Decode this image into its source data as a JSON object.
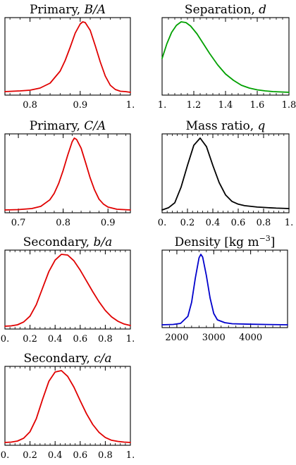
{
  "chart_data": [
    {
      "type": "line",
      "title": "Primary, ",
      "title_var": "B/A",
      "xlim": [
        0.75,
        1.0
      ],
      "xticks": [
        0.8,
        0.9,
        1.0
      ],
      "xtick_labels": [
        "0.8",
        "0.9",
        "1."
      ],
      "series": [
        {
          "color": "#e00000",
          "x": [
            0.75,
            0.78,
            0.8,
            0.82,
            0.84,
            0.86,
            0.87,
            0.88,
            0.89,
            0.9,
            0.905,
            0.91,
            0.92,
            0.93,
            0.94,
            0.95,
            0.96,
            0.97,
            0.98,
            0.99,
            1.0
          ],
          "y": [
            0.01,
            0.02,
            0.03,
            0.06,
            0.13,
            0.3,
            0.45,
            0.64,
            0.84,
            0.97,
            1.0,
            0.99,
            0.88,
            0.66,
            0.43,
            0.23,
            0.1,
            0.04,
            0.015,
            0.01,
            0.0
          ]
        }
      ]
    },
    {
      "type": "line",
      "title": "Separation, ",
      "title_var": "d",
      "xlim": [
        1.0,
        1.8
      ],
      "xticks": [
        1.0,
        1.2,
        1.4,
        1.6,
        1.8
      ],
      "xtick_labels": [
        "1.",
        "1.2",
        "1.4",
        "1.6",
        "1.8"
      ],
      "series": [
        {
          "color": "#00a000",
          "x": [
            1.0,
            1.03,
            1.06,
            1.09,
            1.12,
            1.15,
            1.18,
            1.22,
            1.26,
            1.3,
            1.35,
            1.4,
            1.45,
            1.5,
            1.55,
            1.6,
            1.65,
            1.7,
            1.75,
            1.8
          ],
          "y": [
            0.48,
            0.69,
            0.85,
            0.95,
            1.0,
            0.99,
            0.94,
            0.83,
            0.69,
            0.55,
            0.39,
            0.26,
            0.17,
            0.1,
            0.06,
            0.035,
            0.02,
            0.01,
            0.005,
            0.0
          ]
        }
      ]
    },
    {
      "type": "line",
      "title": "Primary, ",
      "title_var": "C/A",
      "xlim": [
        0.67,
        0.95
      ],
      "xticks": [
        0.7,
        0.8,
        0.9
      ],
      "xtick_labels": [
        "0.7",
        "0.8",
        "0.9"
      ],
      "series": [
        {
          "color": "#e00000",
          "x": [
            0.67,
            0.7,
            0.73,
            0.75,
            0.77,
            0.78,
            0.79,
            0.8,
            0.81,
            0.82,
            0.825,
            0.83,
            0.84,
            0.85,
            0.86,
            0.87,
            0.88,
            0.89,
            0.9,
            0.92,
            0.95
          ],
          "y": [
            0.0,
            0.005,
            0.02,
            0.05,
            0.14,
            0.23,
            0.37,
            0.55,
            0.76,
            0.95,
            1.0,
            0.98,
            0.86,
            0.66,
            0.45,
            0.28,
            0.15,
            0.08,
            0.04,
            0.01,
            0.0
          ]
        }
      ]
    },
    {
      "type": "line",
      "title": "Mass ratio, ",
      "title_var": "q",
      "xlim": [
        0.0,
        1.0
      ],
      "xticks": [
        0.0,
        0.2,
        0.4,
        0.6,
        0.8,
        1.0
      ],
      "xtick_labels": [
        "0.",
        "0.2",
        "0.4",
        "0.6",
        "0.8",
        "1."
      ],
      "series": [
        {
          "color": "#000000",
          "x": [
            0.0,
            0.05,
            0.1,
            0.15,
            0.2,
            0.25,
            0.3,
            0.35,
            0.4,
            0.45,
            0.5,
            0.55,
            0.6,
            0.65,
            0.7,
            0.75,
            0.8,
            0.9,
            1.0
          ],
          "y": [
            0.0,
            0.03,
            0.1,
            0.32,
            0.62,
            0.9,
            1.0,
            0.88,
            0.62,
            0.38,
            0.21,
            0.12,
            0.08,
            0.06,
            0.05,
            0.04,
            0.035,
            0.025,
            0.02
          ]
        }
      ]
    },
    {
      "type": "line",
      "title": "Secondary, ",
      "title_var": "b/a",
      "xlim": [
        0.0,
        1.0
      ],
      "xticks": [
        0.0,
        0.2,
        0.4,
        0.6,
        0.8,
        1.0
      ],
      "xtick_labels": [
        "0.",
        "0.2",
        "0.4",
        "0.6",
        "0.8",
        "1."
      ],
      "series": [
        {
          "color": "#e00000",
          "x": [
            0.0,
            0.05,
            0.1,
            0.15,
            0.2,
            0.25,
            0.3,
            0.35,
            0.4,
            0.45,
            0.5,
            0.55,
            0.6,
            0.65,
            0.7,
            0.75,
            0.8,
            0.85,
            0.9,
            0.95,
            1.0
          ],
          "y": [
            0.0,
            0.005,
            0.02,
            0.06,
            0.14,
            0.3,
            0.53,
            0.76,
            0.92,
            1.0,
            0.99,
            0.91,
            0.78,
            0.63,
            0.48,
            0.34,
            0.22,
            0.13,
            0.07,
            0.03,
            0.01
          ]
        }
      ]
    },
    {
      "type": "line",
      "title": "Density [kg m",
      "title_sup": "−3",
      "title_end": "]",
      "xlim": [
        1600,
        5000
      ],
      "xticks": [
        2000,
        3000,
        4000
      ],
      "xtick_labels": [
        "2000",
        "3000",
        "4000"
      ],
      "series": [
        {
          "color": "#0000cc",
          "x": [
            1600,
            1900,
            2100,
            2300,
            2400,
            2500,
            2600,
            2650,
            2700,
            2800,
            2900,
            3000,
            3100,
            3300,
            3500,
            4000,
            4500,
            5000
          ],
          "y": [
            0.0,
            0.005,
            0.02,
            0.12,
            0.32,
            0.66,
            0.95,
            1.0,
            0.96,
            0.7,
            0.38,
            0.16,
            0.07,
            0.03,
            0.015,
            0.008,
            0.004,
            0.0
          ]
        }
      ]
    },
    {
      "type": "line",
      "title": "Secondary, ",
      "title_var": "c/a",
      "xlim": [
        0.0,
        1.0
      ],
      "xticks": [
        0.0,
        0.2,
        0.4,
        0.6,
        0.8,
        1.0
      ],
      "xtick_labels": [
        "0.",
        "0.2",
        "0.4",
        "0.6",
        "0.8",
        "1."
      ],
      "series": [
        {
          "color": "#e00000",
          "x": [
            0.0,
            0.05,
            0.1,
            0.15,
            0.2,
            0.25,
            0.3,
            0.35,
            0.4,
            0.45,
            0.5,
            0.55,
            0.6,
            0.65,
            0.7,
            0.75,
            0.8,
            0.85,
            0.9,
            0.95,
            1.0
          ],
          "y": [
            0.0,
            0.005,
            0.02,
            0.06,
            0.15,
            0.33,
            0.6,
            0.85,
            0.98,
            1.0,
            0.92,
            0.77,
            0.58,
            0.4,
            0.25,
            0.14,
            0.07,
            0.03,
            0.015,
            0.005,
            0.0
          ]
        }
      ]
    }
  ]
}
